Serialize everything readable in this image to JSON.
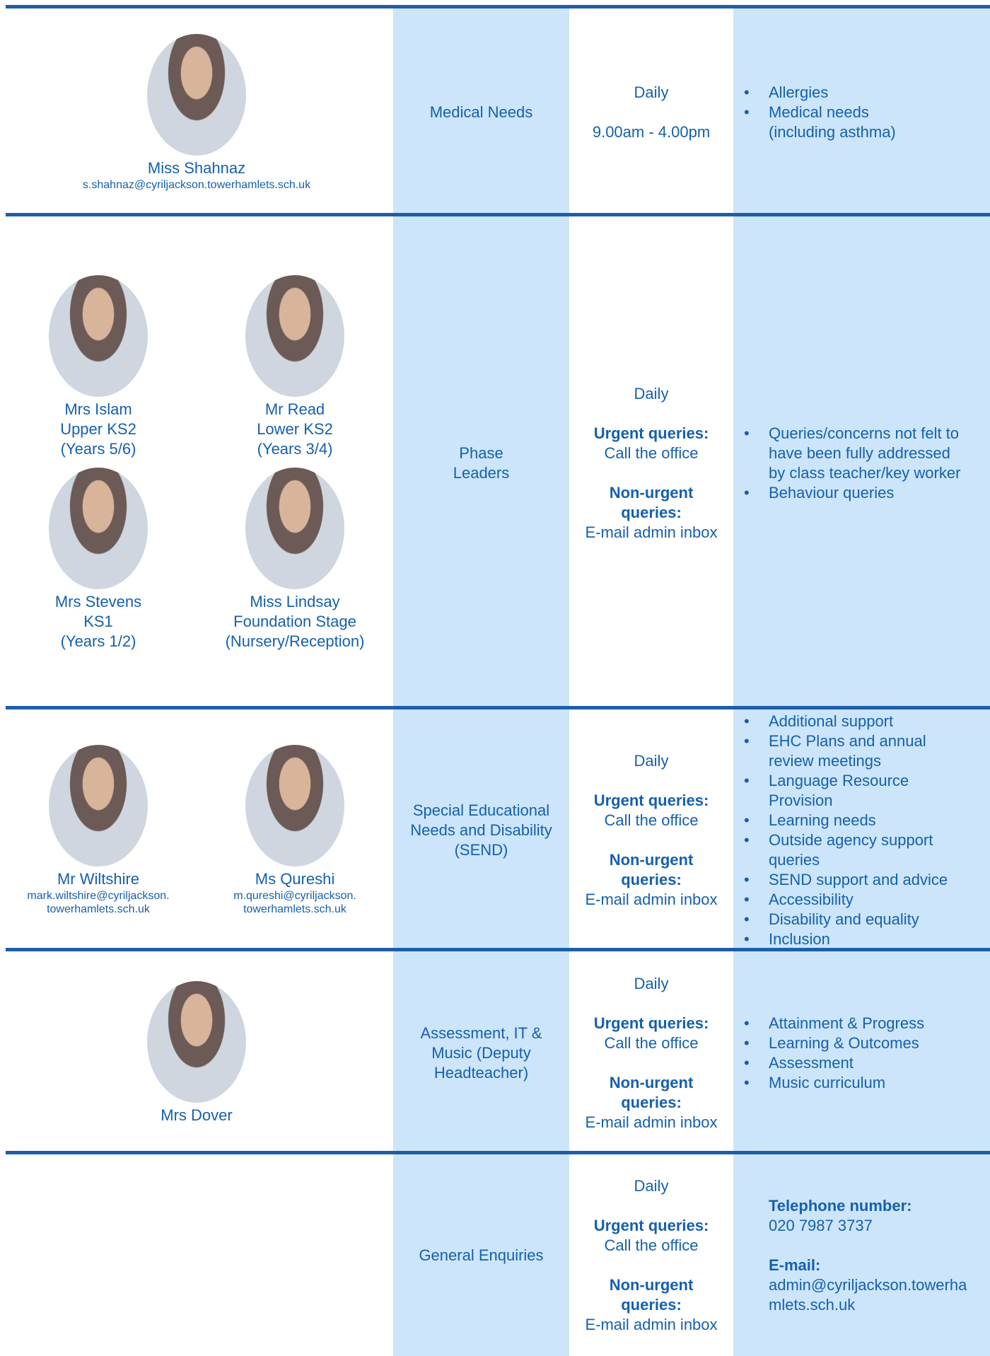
{
  "rows": [
    {
      "staff": [
        {
          "lines": [
            "Miss Shahnaz"
          ],
          "email": [
            "s.shahnaz@cyriljackson.towerhamlets.sch.uk"
          ]
        }
      ],
      "area": [
        "Medical Needs"
      ],
      "availability": {
        "days": "Daily",
        "hours": "9.00am - 4.00pm"
      },
      "topics": [
        [
          "Allergies"
        ],
        [
          "Medical needs",
          "(including asthma)"
        ]
      ]
    },
    {
      "staff": [
        {
          "lines": [
            "Mrs Islam",
            "Upper KS2",
            "(Years 5/6)"
          ]
        },
        {
          "lines": [
            "Mr Read",
            "Lower KS2",
            "(Years 3/4)"
          ]
        },
        {
          "lines": [
            "Mrs Stevens",
            "KS1",
            "(Years 1/2)"
          ]
        },
        {
          "lines": [
            "Miss Lindsay",
            "Foundation Stage",
            "(Nursery/Reception)"
          ]
        }
      ],
      "area": [
        "Phase",
        "Leaders"
      ],
      "availability": {
        "days": "Daily",
        "urgent_label": "Urgent queries:",
        "urgent_action": "Call the office",
        "non_urgent_label": [
          "Non-urgent",
          "queries:"
        ],
        "non_urgent_action": "E-mail admin inbox"
      },
      "topics": [
        [
          "Queries/concerns not felt to",
          "have been fully addressed",
          "by class teacher/key worker"
        ],
        [
          "Behaviour queries"
        ]
      ]
    },
    {
      "staff": [
        {
          "lines": [
            "Mr Wiltshire"
          ],
          "email": [
            "mark.wiltshire@cyriljackson.",
            "towerhamlets.sch.uk"
          ]
        },
        {
          "lines": [
            "Ms Qureshi"
          ],
          "email": [
            "m.qureshi@cyriljackson.",
            "towerhamlets.sch.uk"
          ]
        }
      ],
      "area": [
        "Special Educational",
        "Needs and Disability",
        "(SEND)"
      ],
      "availability": {
        "days": "Daily",
        "urgent_label": "Urgent queries:",
        "urgent_action": "Call the office",
        "non_urgent_label": [
          "Non-urgent",
          "queries:"
        ],
        "non_urgent_action": "E-mail admin inbox"
      },
      "topics": [
        [
          "Additional support"
        ],
        [
          "EHC Plans and annual",
          "review meetings"
        ],
        [
          "Language Resource",
          "Provision"
        ],
        [
          "Learning needs"
        ],
        [
          "Outside agency support",
          "queries"
        ],
        [
          "SEND support and advice"
        ],
        [
          "Accessibility"
        ],
        [
          "Disability and equality"
        ],
        [
          "Inclusion"
        ]
      ]
    },
    {
      "staff": [
        {
          "lines": [
            "Mrs Dover"
          ]
        }
      ],
      "area": [
        "Assessment, IT &",
        "Music (Deputy",
        "Headteacher)"
      ],
      "availability": {
        "days": "Daily",
        "urgent_label": "Urgent queries:",
        "urgent_action": "Call the office",
        "non_urgent_label": [
          "Non-urgent",
          "queries:"
        ],
        "non_urgent_action": "E-mail admin inbox"
      },
      "topics": [
        [
          "Attainment & Progress"
        ],
        [
          "Learning & Outcomes"
        ],
        [
          "Assessment"
        ],
        [
          "Music curriculum"
        ]
      ]
    },
    {
      "staff": [],
      "area": [
        "General Enquiries"
      ],
      "availability": {
        "days": "Daily",
        "urgent_label": "Urgent queries:",
        "urgent_action": "Call the office",
        "non_urgent_label": [
          "Non-urgent",
          "queries:"
        ],
        "non_urgent_action": "E-mail admin inbox"
      },
      "contact": {
        "phone_label": "Telephone number:",
        "phone": "020 7987 3737",
        "email_label": "E-mail:",
        "email": [
          "admin@cyriljackson.towerha",
          "mlets.sch.uk"
        ]
      }
    }
  ]
}
